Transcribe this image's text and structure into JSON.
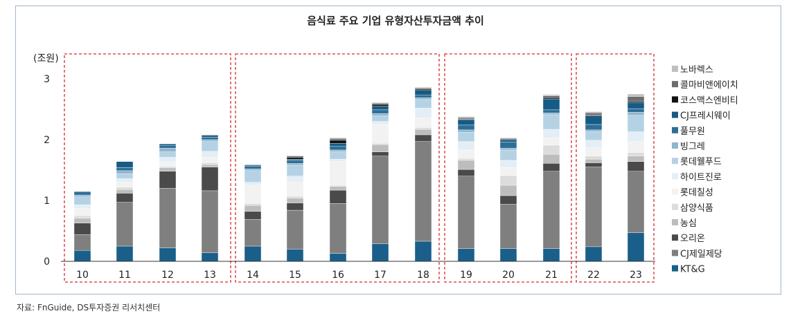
{
  "title": "음식료 주요 기업 유형자산투자금액 추이",
  "source": "자료: FnGuide, DS투자증권 리서치센터",
  "chart_data": {
    "type": "bar",
    "stacked": true,
    "title": "음식료 주요 기업 유형자산투자금액 추이",
    "unit_label": "(조원)",
    "categories": [
      "10",
      "11",
      "12",
      "13",
      "14",
      "15",
      "16",
      "17",
      "18",
      "19",
      "20",
      "21",
      "22",
      "23"
    ],
    "ylim": [
      0,
      3
    ],
    "yticks": [
      0,
      1,
      2,
      3
    ],
    "grid": false,
    "legend_position": "right",
    "groups": [
      {
        "label": "group-2010-2013",
        "categories": [
          "10",
          "11",
          "12",
          "13"
        ]
      },
      {
        "label": "group-2014-2018",
        "categories": [
          "14",
          "15",
          "16",
          "17",
          "18"
        ]
      },
      {
        "label": "group-2019-2021",
        "categories": [
          "19",
          "20",
          "21"
        ]
      },
      {
        "label": "group-2022-2023",
        "categories": [
          "22",
          "23"
        ]
      }
    ],
    "series": [
      {
        "name": "KT&G",
        "color": "#1a5f8a",
        "values": [
          0.18,
          0.25,
          0.22,
          0.14,
          0.25,
          0.2,
          0.13,
          0.29,
          0.33,
          0.21,
          0.21,
          0.21,
          0.24,
          0.47
        ]
      },
      {
        "name": "CJ제일제당",
        "color": "#7f7f7f",
        "values": [
          0.26,
          0.72,
          0.98,
          1.02,
          0.44,
          0.64,
          0.82,
          1.44,
          1.64,
          1.19,
          0.73,
          1.27,
          1.31,
          1.01
        ]
      },
      {
        "name": "오리온",
        "color": "#4a4a4a",
        "values": [
          0.19,
          0.15,
          0.28,
          0.39,
          0.13,
          0.12,
          0.22,
          0.07,
          0.11,
          0.11,
          0.14,
          0.13,
          0.07,
          0.16
        ]
      },
      {
        "name": "농심",
        "color": "#bdbdbd",
        "values": [
          0.08,
          0.06,
          0.06,
          0.04,
          0.1,
          0.08,
          0.06,
          0.12,
          0.09,
          0.15,
          0.17,
          0.15,
          0.06,
          0.09
        ]
      },
      {
        "name": "삼양식품",
        "color": "#dcdcdc",
        "values": [
          0.04,
          0.04,
          0.02,
          0.03,
          0.03,
          0.03,
          0.02,
          0.02,
          0.03,
          0.03,
          0.16,
          0.15,
          0.05,
          0.06
        ]
      },
      {
        "name": "롯데칠성",
        "color": "#f2f2f2",
        "values": [
          0.12,
          0.08,
          0.08,
          0.09,
          0.3,
          0.23,
          0.39,
          0.31,
          0.16,
          0.14,
          0.13,
          0.12,
          0.14,
          0.18
        ]
      },
      {
        "name": "하이트진로",
        "color": "#e3eef6",
        "values": [
          0.06,
          0.06,
          0.07,
          0.1,
          0.05,
          0.1,
          0.04,
          0.05,
          0.16,
          0.14,
          0.12,
          0.14,
          0.12,
          0.16
        ]
      },
      {
        "name": "롯데웰푸드",
        "color": "#b5d2e4",
        "values": [
          0.13,
          0.08,
          0.09,
          0.16,
          0.19,
          0.18,
          0.12,
          0.09,
          0.14,
          0.15,
          0.17,
          0.24,
          0.14,
          0.27
        ]
      },
      {
        "name": "빙그레",
        "color": "#8fb6cf",
        "values": [
          0.03,
          0.05,
          0.06,
          0.03,
          0.03,
          0.03,
          0.03,
          0.04,
          0.03,
          0.04,
          0.03,
          0.03,
          0.03,
          0.05
        ]
      },
      {
        "name": "풀무원",
        "color": "#2e6e96",
        "values": [
          0.05,
          0.05,
          0.04,
          0.04,
          0.04,
          0.05,
          0.06,
          0.06,
          0.04,
          0.08,
          0.1,
          0.05,
          0.09,
          0.06
        ]
      },
      {
        "name": "CJ프레시웨이",
        "color": "#165b85",
        "values": [
          0.01,
          0.1,
          0.03,
          0.03,
          0.02,
          0.02,
          0.05,
          0.06,
          0.08,
          0.09,
          0.04,
          0.18,
          0.14,
          0.1
        ]
      },
      {
        "name": "코스맥스엔비티",
        "color": "#111111",
        "values": [
          0.0,
          0.0,
          0.0,
          0.0,
          0.0,
          0.03,
          0.05,
          0.03,
          0.02,
          0.01,
          0.0,
          0.02,
          0.01,
          0.02
        ]
      },
      {
        "name": "콜마비앤에이치",
        "color": "#6d6d6d",
        "values": [
          0.0,
          0.0,
          0.0,
          0.01,
          0.01,
          0.02,
          0.03,
          0.02,
          0.02,
          0.02,
          0.02,
          0.03,
          0.04,
          0.08
        ]
      },
      {
        "name": "노바렉스",
        "color": "#bfbfbf",
        "values": [
          0.0,
          0.0,
          0.0,
          0.0,
          0.0,
          0.01,
          0.01,
          0.01,
          0.01,
          0.02,
          0.01,
          0.02,
          0.02,
          0.04
        ]
      }
    ]
  }
}
